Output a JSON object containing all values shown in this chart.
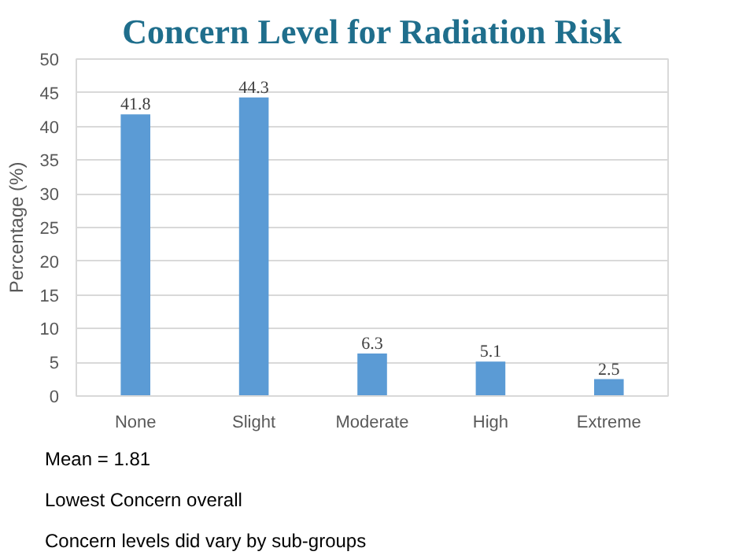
{
  "chart_data": {
    "type": "bar",
    "title": "Concern Level for Radiation Risk",
    "ylabel": "Percentage (%)",
    "categories": [
      "None",
      "Slight",
      "Moderate",
      "High",
      "Extreme"
    ],
    "values": [
      41.8,
      44.3,
      6.3,
      5.1,
      2.5
    ],
    "color": "#5b9bd5",
    "ylim": [
      0,
      50
    ],
    "yticks": [
      0,
      5,
      10,
      15,
      20,
      25,
      30,
      35,
      40,
      45,
      50
    ],
    "grid": "y",
    "data_labels": true,
    "annotations": [
      "Mean = 1.81",
      "Lowest Concern overall",
      "Concern levels did vary by sub-groups"
    ]
  }
}
